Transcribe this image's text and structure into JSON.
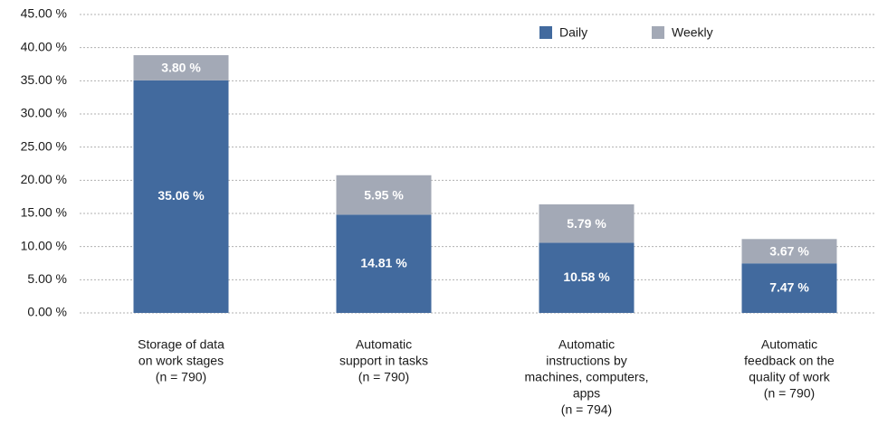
{
  "chart_data": {
    "type": "stacked_bar",
    "categories": [
      [
        "Storage of data",
        "on work stages",
        "(n = 790)"
      ],
      [
        "Automatic",
        "support in tasks",
        "(n = 790)"
      ],
      [
        "Automatic",
        "instructions by",
        "machines, computers,",
        "apps",
        "(n = 794)"
      ],
      [
        "Automatic",
        "feedback on the",
        "quality of work",
        "(n = 790)"
      ]
    ],
    "series": [
      {
        "name": "Daily",
        "color": "#426a9e",
        "values": [
          35.06,
          14.81,
          10.58,
          7.47
        ],
        "value_labels": [
          "35.06 %",
          "14.81 %",
          "10.58 %",
          "7.47 %"
        ]
      },
      {
        "name": "Weekly",
        "color": "#a3a9b6",
        "values": [
          3.8,
          5.95,
          5.79,
          3.67
        ],
        "value_labels": [
          "3.80 %",
          "5.95 %",
          "5.79 %",
          "3.67 %"
        ]
      }
    ],
    "ylim": [
      0,
      45
    ],
    "yticks": [
      {
        "value": 0,
        "label": "0.00 %"
      },
      {
        "value": 5,
        "label": "5.00 %"
      },
      {
        "value": 10,
        "label": "10.00 %"
      },
      {
        "value": 15,
        "label": "15.00 %"
      },
      {
        "value": 20,
        "label": "20.00 %"
      },
      {
        "value": 25,
        "label": "25.00 %"
      },
      {
        "value": 30,
        "label": "30.00 %"
      },
      {
        "value": 35,
        "label": "35.00 %"
      },
      {
        "value": 40,
        "label": "40.00 %"
      },
      {
        "value": 45,
        "label": "45.00 %"
      }
    ],
    "grid": true,
    "legend": "top-right"
  }
}
